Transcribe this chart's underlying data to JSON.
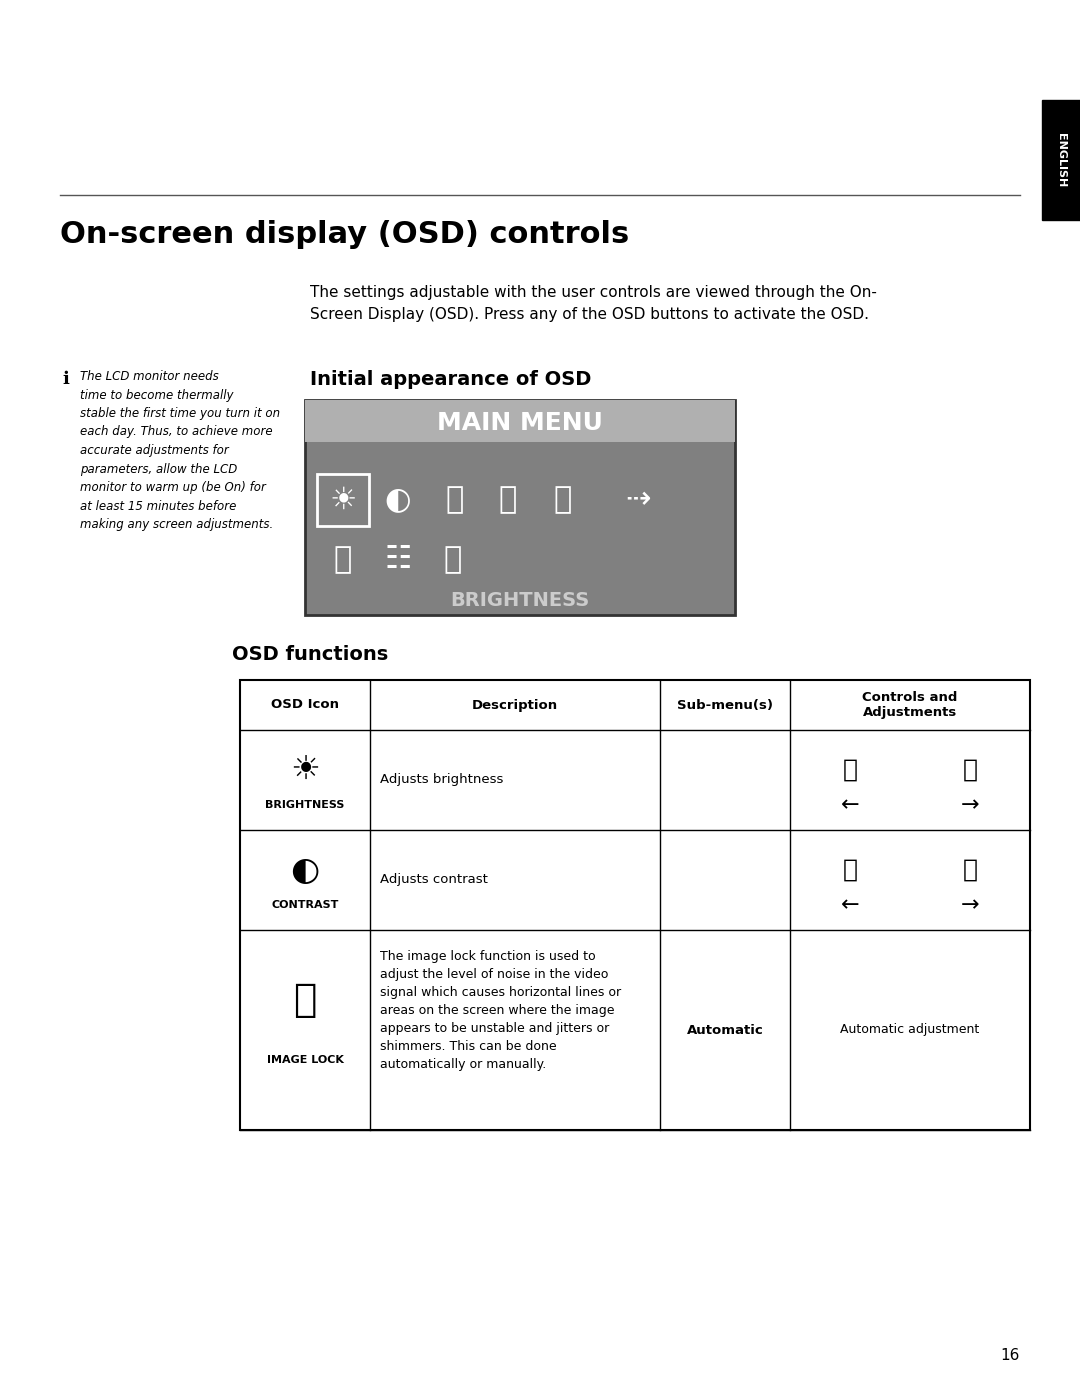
{
  "page_title": "On-screen display (OSD) controls",
  "page_number": "16",
  "english_tab_text": "ENGLISH",
  "intro_text": "The settings adjustable with the user controls are viewed through the On-\nScreen Display (OSD). Press any of the OSD buttons to activate the OSD.",
  "note_text": "The LCD monitor needs\ntime to become thermally\nstable the first time you turn it on\neach day. Thus, to achieve more\naccurate adjustments for\nparameters, allow the LCD\nmonitor to warm up (be On) for\nat least 15 minutes before\nmaking any screen adjustments.",
  "osd_section_title": "Initial appearance of OSD",
  "osd_menu_title": "MAIN MENU",
  "osd_bottom_text": "BRIGHTNESS",
  "osd_functions_title": "OSD functions",
  "table_headers": [
    "OSD Icon",
    "Description",
    "Sub-menu(s)",
    "Controls and\nAdjustments"
  ],
  "table_rows": [
    {
      "icon_label": "BRIGHTNESS",
      "description": "Adjusts brightness",
      "submenu": "",
      "controls": "brightness_arrows"
    },
    {
      "icon_label": "CONTRAST",
      "description": "Adjusts contrast",
      "submenu": "",
      "controls": "contrast_arrows"
    },
    {
      "icon_label": "IMAGE LOCK",
      "description": "The image lock function is used to\nadjust the level of noise in the video\nsignal which causes horizontal lines or\nareas on the screen where the image\nappears to be unstable and jitters or\nshimmers. This can be done\nautomatically or manually.",
      "submenu": "Automatic",
      "controls": "Automatic adjustment"
    }
  ],
  "bg_color": "#ffffff",
  "osd_bg_color": "#808080",
  "osd_header_bg": "#b0b0b0",
  "osd_border_color": "#000000",
  "table_border_color": "#000000",
  "english_tab_bg": "#000000",
  "english_tab_fg": "#ffffff"
}
